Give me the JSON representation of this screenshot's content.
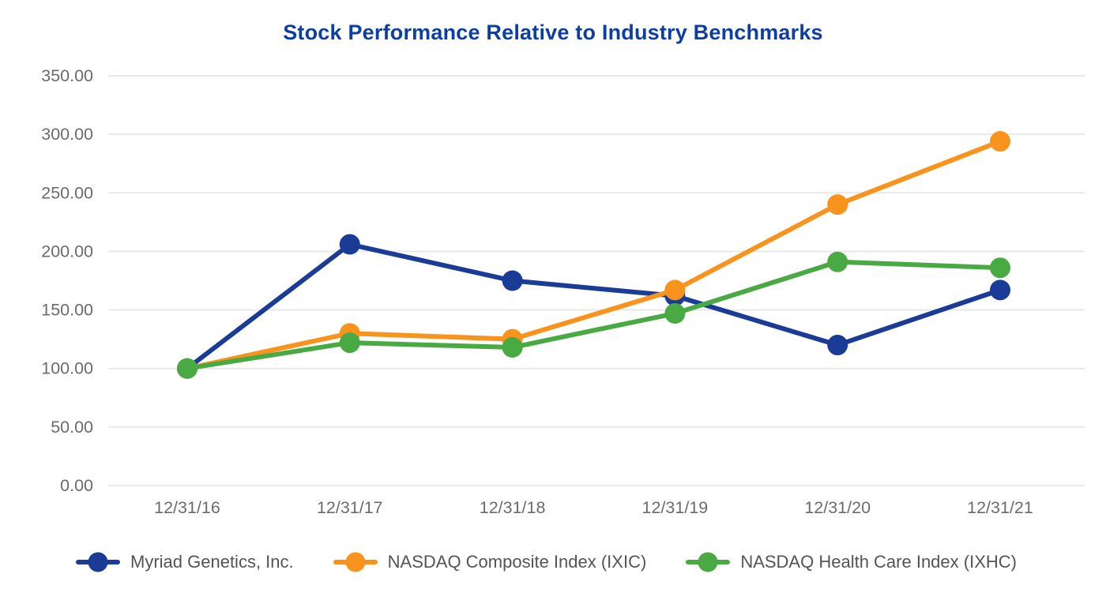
{
  "chart_data": {
    "type": "line",
    "title": "Stock Performance Relative to Industry Benchmarks",
    "x": [
      "12/31/16",
      "12/31/17",
      "12/31/18",
      "12/31/19",
      "12/31/20",
      "12/31/21"
    ],
    "series": [
      {
        "name": "Myriad Genetics, Inc.",
        "color": "#1B3C96",
        "values": [
          100,
          206,
          175,
          162,
          120,
          167
        ]
      },
      {
        "name": "NASDAQ Composite Index (IXIC)",
        "color": "#F8941E",
        "values": [
          100,
          130,
          125,
          167,
          240,
          294
        ]
      },
      {
        "name": "NASDAQ Health Care Index (IXHC)",
        "color": "#49A942",
        "values": [
          100,
          122,
          118,
          147,
          191,
          186
        ]
      }
    ],
    "y_ticks": [
      "350.00",
      "300.00",
      "250.00",
      "200.00",
      "150.00",
      "100.00",
      "50.00",
      "0.00"
    ],
    "ylim": [
      0,
      350
    ],
    "grid": "horizontal-only",
    "legend_position": "bottom",
    "colors": {
      "title": "#0D3FA3",
      "axis_text": "#6B6B6B",
      "grid_line": "#E7E7E7",
      "legend_text": "#545454",
      "background": "#FFFFFF"
    }
  }
}
